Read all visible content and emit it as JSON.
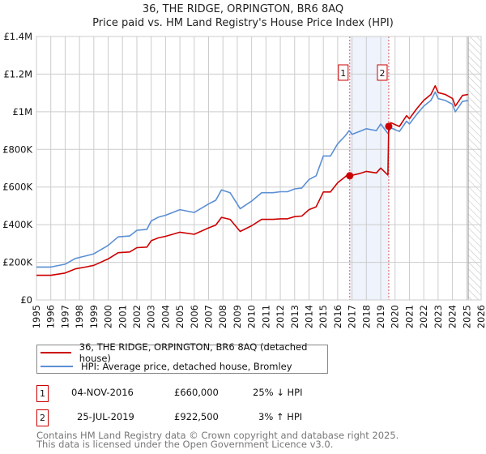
{
  "title": "36, THE RIDGE, ORPINGTON, BR6 8AQ",
  "subtitle": "Price paid vs. HM Land Registry's House Price Index (HPI)",
  "chart_data": {
    "type": "line",
    "title": "36, THE RIDGE, ORPINGTON, BR6 8AQ",
    "subtitle": "Price paid vs. HM Land Registry's House Price Index (HPI)",
    "xlim": [
      1995,
      2026
    ],
    "ylim": [
      0,
      1400000
    ],
    "x_ticks": [
      "1995",
      "1996",
      "1997",
      "1998",
      "1999",
      "2000",
      "2001",
      "2002",
      "2003",
      "2004",
      "2005",
      "2006",
      "2007",
      "2008",
      "2009",
      "2010",
      "2011",
      "2012",
      "2013",
      "2014",
      "2015",
      "2016",
      "2017",
      "2018",
      "2019",
      "2020",
      "2021",
      "2022",
      "2023",
      "2024",
      "2025",
      "2026"
    ],
    "y_ticks": [
      {
        "v": 0,
        "label": "£0"
      },
      {
        "v": 200000,
        "label": "£200K"
      },
      {
        "v": 400000,
        "label": "£400K"
      },
      {
        "v": 600000,
        "label": "£600K"
      },
      {
        "v": 800000,
        "label": "£800K"
      },
      {
        "v": 1000000,
        "label": "£1M"
      },
      {
        "v": 1200000,
        "label": "£1.2M"
      },
      {
        "v": 1400000,
        "label": "£1.4M"
      }
    ],
    "grid": true,
    "forecast_hatch_from": 2025.1,
    "shaded_between": [
      2016.84,
      2019.56
    ],
    "colors": {
      "property": "#cc0000",
      "hpi": "#5b8fd4",
      "shade": "#eef3fc"
    },
    "series": [
      {
        "name": "36, THE RIDGE, ORPINGTON, BR6 8AQ (detached house)",
        "x": [
          1995,
          1996,
          1997,
          1997.7,
          1998.5,
          1999,
          2000,
          2000.7,
          2001.5,
          2002,
          2002.7,
          2003,
          2003.5,
          2004,
          2004.5,
          2005,
          2006,
          2007,
          2007.5,
          2007.9,
          2008.5,
          2009.2,
          2010,
          2010.7,
          2011.5,
          2012,
          2012.5,
          2013,
          2013.5,
          2014,
          2014.5,
          2015,
          2015.5,
          2016,
          2016.5,
          2016.8,
          2016.84,
          2017.5,
          2018,
          2018.7,
          2019,
          2019.5,
          2019.56,
          2019.7,
          2020,
          2020.3,
          2020.8,
          2021,
          2021.5,
          2022,
          2022.5,
          2022.8,
          2023,
          2023.5,
          2024,
          2024.2,
          2024.7,
          2025.1
        ],
        "y": [
          131000,
          131000,
          143000,
          165000,
          176000,
          184000,
          218000,
          251000,
          255000,
          278000,
          281000,
          315000,
          330000,
          338000,
          349000,
          360000,
          349000,
          383000,
          398000,
          439000,
          428000,
          364000,
          394000,
          428000,
          428000,
          431000,
          431000,
          443000,
          446000,
          480000,
          495000,
          574000,
          574000,
          623000,
          653000,
          675000,
          660000,
          671000,
          683000,
          675000,
          701000,
          664000,
          922500,
          942000,
          932000,
          922000,
          979000,
          963000,
          1015000,
          1061000,
          1092000,
          1138000,
          1102000,
          1092000,
          1071000,
          1030000,
          1087000,
          1092000
        ]
      },
      {
        "name": "HPI: Average price, detached house, Bromley",
        "x": [
          1995,
          1996,
          1997,
          1997.7,
          1998.5,
          1999,
          2000,
          2000.7,
          2001.5,
          2002,
          2002.7,
          2003,
          2003.5,
          2004,
          2004.5,
          2005,
          2006,
          2007,
          2007.5,
          2007.9,
          2008.5,
          2009.2,
          2010,
          2010.7,
          2011.5,
          2012,
          2012.5,
          2013,
          2013.5,
          2014,
          2014.5,
          2015,
          2015.5,
          2016,
          2016.5,
          2016.8,
          2017,
          2017.5,
          2018,
          2018.7,
          2019,
          2019.5,
          2019.7,
          2020,
          2020.3,
          2020.8,
          2021,
          2021.5,
          2022,
          2022.5,
          2022.8,
          2023,
          2023.5,
          2024,
          2024.2,
          2024.7,
          2025.1
        ],
        "y": [
          175000,
          175000,
          190000,
          220000,
          235000,
          245000,
          290000,
          335000,
          340000,
          370000,
          375000,
          420000,
          440000,
          450000,
          465000,
          480000,
          465000,
          510000,
          530000,
          585000,
          570000,
          485000,
          525000,
          570000,
          570000,
          575000,
          575000,
          590000,
          595000,
          640000,
          660000,
          765000,
          765000,
          830000,
          870000,
          900000,
          880000,
          895000,
          910000,
          900000,
          935000,
          885000,
          915000,
          905000,
          895000,
          950000,
          935000,
          985000,
          1030000,
          1060000,
          1105000,
          1070000,
          1060000,
          1040000,
          1000000,
          1055000,
          1060000
        ]
      }
    ],
    "sales": [
      {
        "label": "1",
        "x": 2016.84,
        "y": 660000
      },
      {
        "label": "2",
        "x": 2019.56,
        "y": 922500
      }
    ]
  },
  "legend": {
    "property": "36, THE RIDGE, ORPINGTON, BR6 8AQ (detached house)",
    "hpi": "HPI: Average price, detached house, Bromley"
  },
  "transactions": [
    {
      "num": "1",
      "date": "04-NOV-2016",
      "price": "£660,000",
      "hpi": "25% ↓ HPI"
    },
    {
      "num": "2",
      "date": "25-JUL-2019",
      "price": "£922,500",
      "hpi": "3% ↑ HPI"
    }
  ],
  "footer": {
    "line1": "Contains HM Land Registry data © Crown copyright and database right 2025.",
    "line2": "This data is licensed under the Open Government Licence v3.0."
  }
}
